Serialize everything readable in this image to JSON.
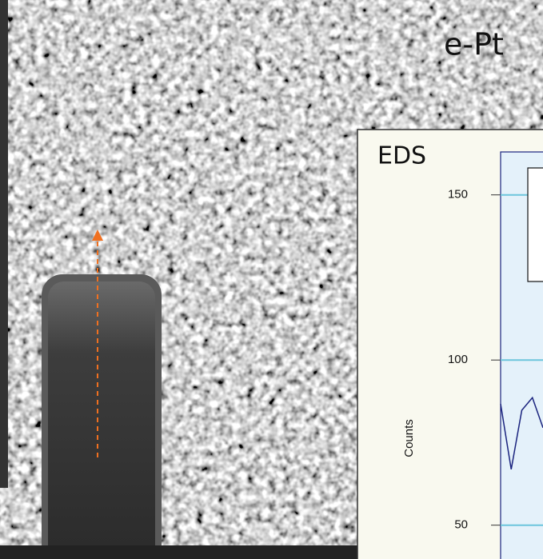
{
  "image": {
    "label": "e-Pt"
  },
  "chart_data": {
    "type": "line",
    "title": "EDS",
    "y_label": "Counts",
    "categories": [
      null,
      null,
      null,
      null,
      null
    ],
    "series": [
      {
        "color": "#1a237e",
        "values": [
          86.7,
          66.9,
          84.8,
          88.6,
          79.5
        ]
      }
    ],
    "ylim": [
      40,
      163
    ],
    "yticks": [
      50,
      100,
      150
    ],
    "grid": true
  }
}
